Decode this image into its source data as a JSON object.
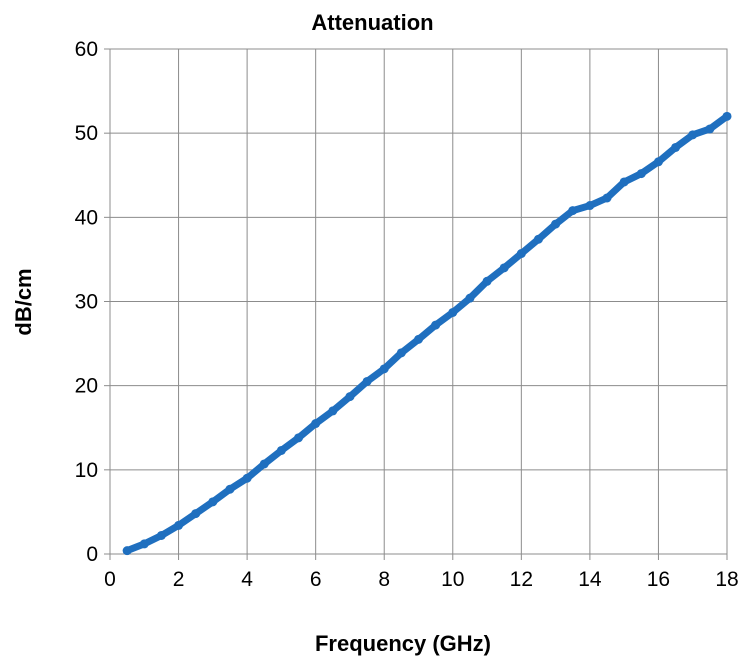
{
  "chart_data": {
    "type": "line",
    "title": "Attenuation",
    "xlabel": "Frequency (GHz)",
    "ylabel": "dB/cm",
    "xlim": [
      0,
      18
    ],
    "ylim": [
      0,
      60
    ],
    "xticks": [
      "0",
      "2",
      "4",
      "6",
      "8",
      "10",
      "12",
      "14",
      "16",
      "18"
    ],
    "yticks": [
      "0",
      "10",
      "20",
      "30",
      "40",
      "50",
      "60"
    ],
    "grid": true,
    "legend": "none",
    "series": [
      {
        "color": "#1f6fbf",
        "x": [
          0.5,
          1,
          1.5,
          2,
          2.5,
          3,
          3.5,
          4,
          4.5,
          5,
          5.5,
          6,
          6.5,
          7,
          7.5,
          8,
          8.5,
          9,
          9.5,
          10,
          10.5,
          11,
          11.5,
          12,
          12.5,
          13,
          13.5,
          14,
          14.5,
          15,
          15.5,
          16,
          16.5,
          17,
          17.5,
          18
        ],
        "y": [
          0.4,
          1.2,
          2.2,
          3.4,
          4.8,
          6.2,
          7.7,
          9.0,
          10.7,
          12.3,
          13.8,
          15.5,
          17.0,
          18.7,
          20.5,
          22.0,
          23.9,
          25.5,
          27.2,
          28.7,
          30.4,
          32.4,
          34.0,
          35.7,
          37.4,
          39.2,
          40.8,
          41.4,
          42.3,
          44.2,
          45.2,
          46.6,
          48.3,
          49.8,
          50.5,
          52.0
        ]
      }
    ]
  }
}
